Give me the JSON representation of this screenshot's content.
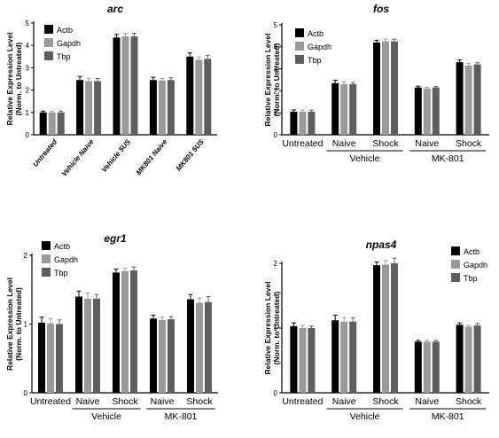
{
  "colors": {
    "actb": "#000000",
    "gapdh": "#9a9a9a",
    "tbp": "#5e5e5e"
  },
  "chart_data": [
    {
      "type": "bar",
      "title": "arc",
      "ylabel": "Relative Expression Level",
      "ylabel2": "(Norm. to Untreated)",
      "ylim": [
        0,
        5
      ],
      "yticks": [
        "0",
        "1",
        "2",
        "3",
        "4",
        "5"
      ],
      "categories": [
        "Untreated",
        "Vehicle Naive",
        "Vehicle 5US",
        "MK801 Naive",
        "MK801 5US"
      ],
      "category_label_style": "rotated",
      "groups": [],
      "legend": "top-left",
      "series": [
        {
          "name": "Actb",
          "values": [
            1.0,
            2.45,
            4.35,
            2.45,
            3.5
          ],
          "errors": [
            0.06,
            0.16,
            0.14,
            0.12,
            0.16
          ]
        },
        {
          "name": "Gapdh",
          "values": [
            1.0,
            2.4,
            4.4,
            2.42,
            3.35
          ],
          "errors": [
            0.06,
            0.13,
            0.13,
            0.1,
            0.14
          ]
        },
        {
          "name": "Tbp",
          "values": [
            1.0,
            2.4,
            4.4,
            2.45,
            3.4
          ],
          "errors": [
            0.06,
            0.12,
            0.14,
            0.1,
            0.16
          ]
        }
      ]
    },
    {
      "type": "bar",
      "title": "fos",
      "ylabel": "Relative Expression Level",
      "ylabel2": "(Norm. to Untreated)",
      "ylim": [
        0,
        5
      ],
      "yticks": [
        "0",
        "1",
        "2",
        "3",
        "4",
        "5"
      ],
      "categories": [
        "Untreated",
        "Naive",
        "Shock",
        "Naive",
        "Shock"
      ],
      "category_label_style": "bracket",
      "groups": [
        {
          "label": "Vehicle",
          "start": 1,
          "end": 2
        },
        {
          "label": "MK-801",
          "start": 3,
          "end": 4
        }
      ],
      "legend": "top-left",
      "series": [
        {
          "name": "Actb",
          "values": [
            1.05,
            2.35,
            4.2,
            2.15,
            3.3
          ],
          "errors": [
            0.08,
            0.13,
            0.1,
            0.06,
            0.1
          ]
        },
        {
          "name": "Gapdh",
          "values": [
            1.05,
            2.3,
            4.25,
            2.1,
            3.15
          ],
          "errors": [
            0.08,
            0.1,
            0.1,
            0.05,
            0.1
          ]
        },
        {
          "name": "Tbp",
          "values": [
            1.05,
            2.3,
            4.25,
            2.15,
            3.2
          ],
          "errors": [
            0.07,
            0.08,
            0.1,
            0.05,
            0.08
          ]
        }
      ]
    },
    {
      "type": "bar",
      "title": "egr1",
      "ylabel": "Relative Expression Level",
      "ylabel2": "(Norm. to Untreated)",
      "ylim": [
        0,
        2
      ],
      "yticks": [
        "0",
        "1",
        "2"
      ],
      "categories": [
        "Untreated",
        "Naive",
        "Shock",
        "Naive",
        "Shock"
      ],
      "category_label_style": "bracket",
      "groups": [
        {
          "label": "Vehicle",
          "start": 1,
          "end": 2
        },
        {
          "label": "MK-801",
          "start": 3,
          "end": 4
        }
      ],
      "legend": "top-left",
      "series": [
        {
          "name": "Actb",
          "values": [
            1.02,
            1.4,
            1.75,
            1.08,
            1.36
          ],
          "errors": [
            0.08,
            0.08,
            0.05,
            0.05,
            0.07
          ]
        },
        {
          "name": "Gapdh",
          "values": [
            1.01,
            1.37,
            1.77,
            1.06,
            1.31
          ],
          "errors": [
            0.07,
            0.08,
            0.04,
            0.04,
            0.07
          ]
        },
        {
          "name": "Tbp",
          "values": [
            1.0,
            1.37,
            1.78,
            1.07,
            1.32
          ],
          "errors": [
            0.06,
            0.06,
            0.05,
            0.04,
            0.08
          ]
        }
      ]
    },
    {
      "type": "bar",
      "title": "npas4",
      "ylabel": "Relative Expression Level",
      "ylabel2": "(Norm. to Untreated)",
      "ylim": [
        0,
        2
      ],
      "yticks": [
        "0",
        "1",
        "2"
      ],
      "categories": [
        "Untreated",
        "Naive",
        "Shock",
        "Naive",
        "Shock"
      ],
      "category_label_style": "bracket",
      "groups": [
        {
          "label": "Vehicle",
          "start": 1,
          "end": 2
        },
        {
          "label": "MK-801",
          "start": 3,
          "end": 4
        }
      ],
      "legend": "top-right",
      "series": [
        {
          "name": "Actb",
          "values": [
            1.03,
            1.12,
            1.97,
            0.79,
            1.05
          ],
          "errors": [
            0.05,
            0.08,
            0.05,
            0.02,
            0.03
          ]
        },
        {
          "name": "Gapdh",
          "values": [
            1.0,
            1.1,
            1.98,
            0.79,
            1.02
          ],
          "errors": [
            0.04,
            0.06,
            0.06,
            0.02,
            0.02
          ]
        },
        {
          "name": "Tbp",
          "values": [
            1.0,
            1.1,
            2.0,
            0.79,
            1.04
          ],
          "errors": [
            0.03,
            0.06,
            0.08,
            0.02,
            0.03
          ]
        }
      ]
    }
  ]
}
